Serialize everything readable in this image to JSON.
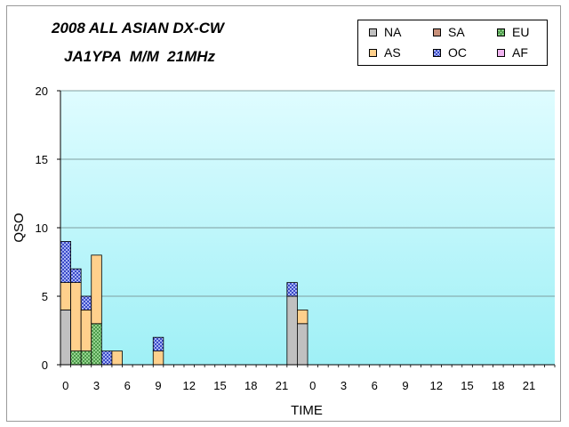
{
  "chart_data": {
    "type": "bar",
    "stacked": true,
    "title": "2008 ALL ASIAN DX-CW",
    "subtitle": "JA1YPA  M/M  21MHz",
    "xlabel": "TIME",
    "ylabel": "QSO",
    "ylim": [
      0,
      20
    ],
    "yticks": [
      0,
      5,
      10,
      15,
      20
    ],
    "xtick_labels": [
      "0",
      "3",
      "6",
      "9",
      "12",
      "15",
      "18",
      "21",
      "0",
      "3",
      "6",
      "9",
      "12",
      "15",
      "18",
      "21"
    ],
    "xtick_every": 3,
    "legend_position": "top-right",
    "categories": [
      "0",
      "1",
      "2",
      "3",
      "4",
      "5",
      "6",
      "7",
      "8",
      "9",
      "10",
      "11",
      "12",
      "13",
      "14",
      "15",
      "16",
      "17",
      "18",
      "19",
      "20",
      "21",
      "22",
      "23",
      "0",
      "1",
      "2",
      "3",
      "4",
      "5",
      "6",
      "7",
      "8",
      "9",
      "10",
      "11",
      "12",
      "13",
      "14",
      "15",
      "16",
      "17",
      "18",
      "19",
      "20",
      "21",
      "22",
      "23"
    ],
    "series": [
      {
        "name": "NA",
        "color": "#c0c0c0",
        "pattern": "solid",
        "values": [
          4,
          0,
          0,
          0,
          0,
          0,
          0,
          0,
          0,
          0,
          0,
          0,
          0,
          0,
          0,
          0,
          0,
          0,
          0,
          0,
          0,
          0,
          5,
          3,
          0,
          0,
          0,
          0,
          0,
          0,
          0,
          0,
          0,
          0,
          0,
          0,
          0,
          0,
          0,
          0,
          0,
          0,
          0,
          0,
          0,
          0,
          0,
          0
        ]
      },
      {
        "name": "SA",
        "color": "#c8907a",
        "pattern": "solid",
        "values": [
          0,
          0,
          0,
          0,
          0,
          0,
          0,
          0,
          0,
          0,
          0,
          0,
          0,
          0,
          0,
          0,
          0,
          0,
          0,
          0,
          0,
          0,
          0,
          0,
          0,
          0,
          0,
          0,
          0,
          0,
          0,
          0,
          0,
          0,
          0,
          0,
          0,
          0,
          0,
          0,
          0,
          0,
          0,
          0,
          0,
          0,
          0,
          0
        ]
      },
      {
        "name": "EU",
        "color": "#a8e4a0",
        "pattern": "cross",
        "values": [
          0,
          1,
          1,
          3,
          0,
          0,
          0,
          0,
          0,
          0,
          0,
          0,
          0,
          0,
          0,
          0,
          0,
          0,
          0,
          0,
          0,
          0,
          0,
          0,
          0,
          0,
          0,
          0,
          0,
          0,
          0,
          0,
          0,
          0,
          0,
          0,
          0,
          0,
          0,
          0,
          0,
          0,
          0,
          0,
          0,
          0,
          0,
          0
        ]
      },
      {
        "name": "AS",
        "color": "#ffd08c",
        "pattern": "solid",
        "values": [
          2,
          5,
          3,
          5,
          0,
          1,
          0,
          0,
          0,
          1,
          0,
          0,
          0,
          0,
          0,
          0,
          0,
          0,
          0,
          0,
          0,
          0,
          0,
          1,
          0,
          0,
          0,
          0,
          0,
          0,
          0,
          0,
          0,
          0,
          0,
          0,
          0,
          0,
          0,
          0,
          0,
          0,
          0,
          0,
          0,
          0,
          0,
          0
        ]
      },
      {
        "name": "OC",
        "color": "#a8b4f4",
        "pattern": "check",
        "values": [
          3,
          1,
          1,
          0,
          1,
          0,
          0,
          0,
          0,
          1,
          0,
          0,
          0,
          0,
          0,
          0,
          0,
          0,
          0,
          0,
          0,
          0,
          1,
          0,
          0,
          0,
          0,
          0,
          0,
          0,
          0,
          0,
          0,
          0,
          0,
          0,
          0,
          0,
          0,
          0,
          0,
          0,
          0,
          0,
          0,
          0,
          0,
          0
        ]
      },
      {
        "name": "AF",
        "color": "#f0b4f0",
        "pattern": "solid",
        "values": [
          0,
          0,
          0,
          0,
          0,
          0,
          0,
          0,
          0,
          0,
          0,
          0,
          0,
          0,
          0,
          0,
          0,
          0,
          0,
          0,
          0,
          0,
          0,
          0,
          0,
          0,
          0,
          0,
          0,
          0,
          0,
          0,
          0,
          0,
          0,
          0,
          0,
          0,
          0,
          0,
          0,
          0,
          0,
          0,
          0,
          0,
          0,
          0
        ]
      }
    ],
    "grid": true,
    "plot_background": "gradient-cyan"
  }
}
